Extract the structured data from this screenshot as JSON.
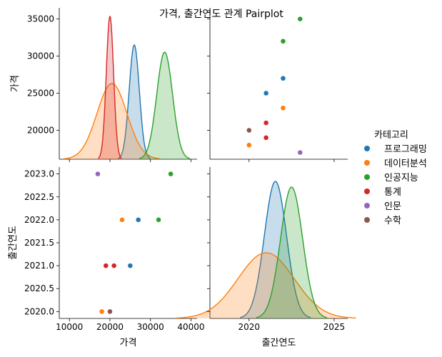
{
  "chart_data": {
    "type": "scatter",
    "title": "가격, 출간연도 관계 Pairplot",
    "variables": [
      "가격",
      "출간연도"
    ],
    "legend": {
      "title": "카테고리",
      "position": "right",
      "entries": [
        {
          "name": "프로그래밍",
          "color": "#1f77b4"
        },
        {
          "name": "데이터분석",
          "color": "#ff7f0e"
        },
        {
          "name": "인공지능",
          "color": "#2ca02c"
        },
        {
          "name": "통계",
          "color": "#d62728"
        },
        {
          "name": "인문",
          "color": "#9467bd"
        },
        {
          "name": "수학",
          "color": "#8c564b"
        }
      ]
    },
    "points": [
      {
        "category": "프로그래밍",
        "price": 27000,
        "year": 2022
      },
      {
        "category": "프로그래밍",
        "price": 25000,
        "year": 2021
      },
      {
        "category": "데이터분석",
        "price": 23000,
        "year": 2022
      },
      {
        "category": "데이터분석",
        "price": 18000,
        "year": 2020
      },
      {
        "category": "인공지능",
        "price": 35000,
        "year": 2023
      },
      {
        "category": "인공지능",
        "price": 32000,
        "year": 2022
      },
      {
        "category": "통계",
        "price": 21000,
        "year": 2021
      },
      {
        "category": "통계",
        "price": 19000,
        "year": 2021
      },
      {
        "category": "인문",
        "price": 17000,
        "year": 2023
      },
      {
        "category": "수학",
        "price": 20000,
        "year": 2020
      }
    ],
    "axes": {
      "price": {
        "label": "가격",
        "range": [
          7500,
          41500
        ],
        "ticks": [
          10000,
          20000,
          30000,
          40000
        ],
        "diag_ticks": [
          20000,
          25000,
          30000,
          35000
        ]
      },
      "year": {
        "label": "출간연도",
        "range": [
          2019.85,
          2023.15
        ],
        "ticks": [
          2020.0,
          2020.5,
          2021.0,
          2021.5,
          2022.0,
          2022.5,
          2023.0
        ],
        "tick_labels": [
          "2020.0",
          "2020.5",
          "2021.0",
          "2021.5",
          "2022.0",
          "2022.5",
          "2023.0"
        ],
        "diag_range": [
          2017.7,
          2025.8
        ],
        "diag_ticks": [
          2020,
          2025
        ]
      }
    },
    "kde": {
      "price": [
        {
          "category": "프로그래밍",
          "mean": 26000,
          "sd": 1250,
          "peak": 0.8
        },
        {
          "category": "데이터분석",
          "mean": 20500,
          "sd": 3700,
          "peak": 0.53
        },
        {
          "category": "인공지능",
          "mean": 33500,
          "sd": 1950,
          "peak": 0.75
        },
        {
          "category": "통계",
          "mean": 20000,
          "sd": 900,
          "peak": 1.0
        }
      ],
      "year": [
        {
          "category": "프로그래밍",
          "mean": 2021.55,
          "sd": 0.65,
          "peak": 0.96
        },
        {
          "category": "데이터분석",
          "mean": 2021.0,
          "sd": 1.65,
          "peak": 0.46
        },
        {
          "category": "인공지능",
          "mean": 2022.5,
          "sd": 0.65,
          "peak": 0.92
        }
      ]
    }
  }
}
